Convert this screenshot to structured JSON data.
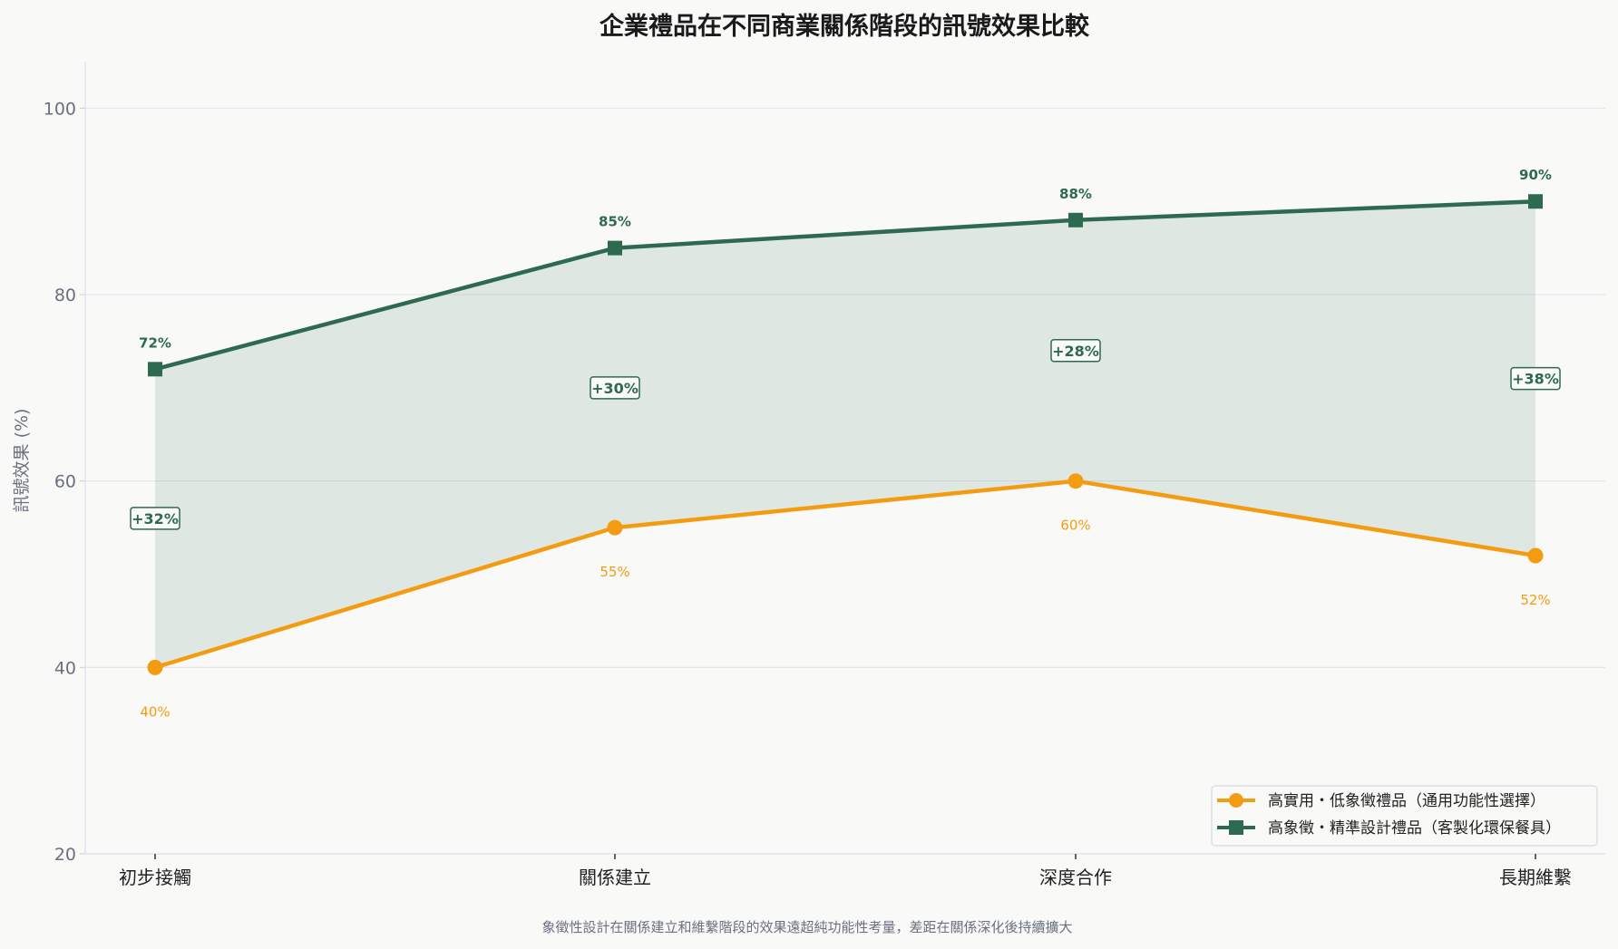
{
  "chart_data": {
    "type": "line",
    "title": "企業禮品在不同商業關係階段的訊號效果比較",
    "ylabel": "訊號效果 (%)",
    "xlabel": "",
    "categories": [
      "初步接觸",
      "關係建立",
      "深度合作",
      "長期維繫"
    ],
    "ylim": [
      20,
      105
    ],
    "yticks": [
      20,
      40,
      60,
      80,
      100
    ],
    "grid": "horizontal",
    "legend_position": "bottom-right",
    "series": [
      {
        "name": "高實用・低象徵禮品（通用功能性選擇）",
        "values": [
          40,
          55,
          60,
          52
        ],
        "labels": [
          "40%",
          "55%",
          "60%",
          "52%"
        ],
        "color": "#f39c12",
        "marker": "circle"
      },
      {
        "name": "高象徵・精準設計禮品（客製化環保餐具）",
        "values": [
          72,
          85,
          88,
          90
        ],
        "labels": [
          "72%",
          "85%",
          "88%",
          "90%"
        ],
        "color": "#2d6a4f",
        "marker": "square"
      }
    ],
    "fill_between": {
      "color": "#2d6a4f"
    },
    "annotations": [
      "+32%",
      "+30%",
      "+28%",
      "+38%"
    ],
    "caption": "象徵性設計在關係建立和維繫階段的效果遠超純功能性考量，差距在關係深化後持續擴大"
  }
}
